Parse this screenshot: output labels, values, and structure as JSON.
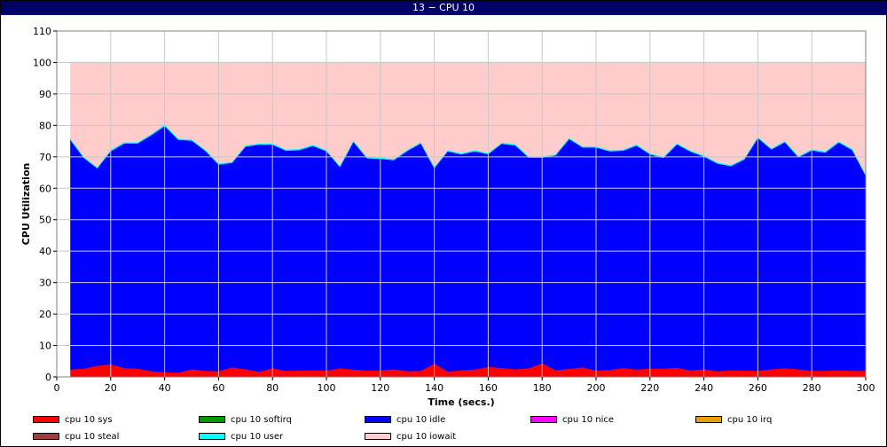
{
  "window": {
    "title": "13 − CPU 10"
  },
  "chart_data": {
    "type": "area",
    "stacked": true,
    "title": "13 − CPU 10",
    "xlabel": "Time (secs.)",
    "ylabel": "CPU Utilization",
    "xlim": [
      0,
      300
    ],
    "ylim": [
      0,
      110
    ],
    "xticks": [
      0,
      20,
      40,
      60,
      80,
      100,
      120,
      140,
      160,
      180,
      200,
      220,
      240,
      260,
      280,
      300
    ],
    "yticks": [
      0,
      10,
      20,
      30,
      40,
      50,
      60,
      70,
      80,
      90,
      100,
      110
    ],
    "grid": true,
    "legend_position": "bottom",
    "x": [
      5,
      10,
      15,
      20,
      25,
      30,
      35,
      40,
      45,
      50,
      55,
      60,
      65,
      70,
      75,
      80,
      85,
      90,
      95,
      100,
      105,
      110,
      115,
      120,
      125,
      130,
      135,
      140,
      145,
      150,
      155,
      160,
      165,
      170,
      175,
      180,
      185,
      190,
      195,
      200,
      205,
      210,
      215,
      220,
      225,
      230,
      235,
      240,
      245,
      250,
      255,
      260,
      265,
      270,
      275,
      280,
      285,
      290,
      295,
      300
    ],
    "series": [
      {
        "name": "cpu 10 sys",
        "color": "#ff0000",
        "values": [
          2.3,
          2.6,
          3.5,
          4.0,
          2.8,
          2.6,
          1.8,
          1.5,
          1.3,
          2.4,
          1.9,
          1.8,
          3.0,
          2.4,
          1.6,
          2.7,
          1.9,
          2.0,
          2.1,
          2.0,
          2.7,
          2.3,
          2.0,
          2.1,
          2.4,
          1.8,
          1.9,
          4.2,
          1.7,
          2.1,
          2.3,
          3.2,
          2.8,
          2.4,
          2.7,
          4.3,
          2.1,
          2.5,
          3.0,
          2.0,
          2.2,
          2.8,
          2.3,
          2.6,
          2.6,
          2.9,
          2.0,
          2.4,
          1.8,
          2.1,
          2.0,
          1.9,
          2.4,
          2.7,
          2.4,
          1.9,
          1.9,
          2.1,
          1.9,
          1.9
        ]
      },
      {
        "name": "cpu 10 softirq",
        "color": "#009900",
        "values": [
          0,
          0,
          0,
          0,
          0,
          0,
          0,
          0,
          0,
          0,
          0,
          0,
          0,
          0,
          0,
          0,
          0,
          0,
          0,
          0,
          0,
          0,
          0,
          0,
          0,
          0,
          0,
          0,
          0,
          0,
          0,
          0,
          0,
          0,
          0,
          0,
          0,
          0,
          0,
          0,
          0,
          0,
          0,
          0,
          0,
          0,
          0,
          0,
          0,
          0,
          0,
          0,
          0,
          0,
          0,
          0,
          0,
          0,
          0,
          0
        ]
      },
      {
        "name": "cpu 10 idle",
        "color": "#0000ff",
        "values": [
          73.0,
          67.0,
          62.8,
          67.7,
          71.4,
          71.6,
          75.0,
          78.2,
          74.1,
          72.7,
          70.0,
          65.7,
          65.0,
          70.8,
          72.2,
          71.1,
          70.0,
          70.1,
          71.3,
          69.7,
          64.0,
          72.4,
          67.5,
          67.2,
          66.5,
          70.0,
          72.3,
          62.1,
          70.0,
          68.6,
          69.4,
          67.6,
          71.3,
          71.2,
          67.0,
          65.4,
          68.3,
          73.1,
          69.9,
          70.9,
          69.5,
          69.1,
          71.2,
          68.1,
          67.0,
          71.0,
          69.6,
          67.6,
          66.0,
          64.9,
          67.1,
          74.0,
          69.9,
          71.9,
          67.4,
          70.1,
          69.4,
          72.4,
          70.2,
          62.0
        ]
      },
      {
        "name": "cpu 10 nice",
        "color": "#ff00ff",
        "values": [
          0,
          0,
          0,
          0,
          0,
          0,
          0,
          0,
          0,
          0,
          0,
          0,
          0,
          0,
          0,
          0,
          0,
          0,
          0,
          0,
          0,
          0,
          0,
          0,
          0,
          0,
          0,
          0,
          0,
          0,
          0,
          0,
          0,
          0,
          0,
          0,
          0,
          0,
          0,
          0,
          0,
          0,
          0,
          0,
          0,
          0,
          0,
          0,
          0,
          0,
          0,
          0,
          0,
          0,
          0,
          0,
          0,
          0,
          0,
          0
        ]
      },
      {
        "name": "cpu 10 irq",
        "color": "#e6a000",
        "values": [
          0,
          0,
          0,
          0,
          0,
          0,
          0,
          0,
          0,
          0,
          0,
          0,
          0,
          0,
          0,
          0,
          0,
          0,
          0,
          0,
          0,
          0,
          0,
          0,
          0,
          0,
          0,
          0,
          0,
          0,
          0,
          0,
          0,
          0,
          0,
          0,
          0,
          0,
          0,
          0,
          0,
          0,
          0,
          0,
          0,
          0,
          0,
          0,
          0,
          0,
          0,
          0,
          0,
          0,
          0,
          0,
          0,
          0,
          0,
          0
        ]
      },
      {
        "name": "cpu 10 steal",
        "color": "#a03c3c",
        "values": [
          0,
          0,
          0,
          0,
          0,
          0,
          0,
          0,
          0,
          0,
          0,
          0,
          0,
          0,
          0,
          0,
          0,
          0,
          0,
          0,
          0,
          0,
          0,
          0,
          0,
          0,
          0,
          0,
          0,
          0,
          0,
          0,
          0,
          0,
          0,
          0,
          0,
          0,
          0,
          0,
          0,
          0,
          0,
          0,
          0,
          0,
          0,
          0,
          0,
          0,
          0,
          0,
          0,
          0,
          0,
          0,
          0,
          0,
          0,
          0
        ]
      },
      {
        "name": "cpu 10 user",
        "color": "#00ffff",
        "values": [
          0.5,
          0.4,
          0.3,
          0.5,
          0.4,
          0.4,
          0.4,
          0.5,
          0.4,
          0.4,
          0.4,
          0.4,
          0.4,
          0.4,
          0.4,
          0.4,
          0.4,
          0.4,
          0.4,
          0.4,
          0.4,
          0.4,
          0.4,
          0.4,
          0.4,
          0.4,
          0.4,
          0.4,
          0.4,
          0.4,
          0.4,
          0.4,
          0.4,
          0.4,
          0.4,
          0.4,
          0.4,
          0.4,
          0.4,
          0.4,
          0.4,
          0.4,
          0.4,
          0.4,
          0.4,
          0.4,
          0.4,
          0.4,
          0.4,
          0.4,
          0.4,
          0.4,
          0.4,
          0.4,
          0.4,
          0.4,
          0.4,
          0.4,
          0.4,
          0.4
        ]
      },
      {
        "name": "cpu 10 iowait",
        "color": "#ffcccc",
        "values": [
          24.2,
          30.0,
          33.4,
          27.8,
          25.4,
          25.4,
          22.8,
          19.8,
          24.2,
          24.5,
          27.7,
          32.1,
          31.6,
          26.4,
          25.8,
          25.8,
          27.7,
          27.5,
          26.2,
          27.9,
          32.9,
          24.9,
          30.1,
          30.3,
          30.7,
          27.8,
          25.4,
          33.3,
          27.9,
          28.9,
          27.9,
          28.8,
          25.5,
          26.0,
          29.9,
          29.9,
          29.2,
          24.0,
          26.7,
          26.7,
          27.9,
          27.7,
          26.1,
          28.9,
          30.0,
          25.7,
          28.0,
          29.6,
          31.8,
          32.6,
          30.5,
          23.7,
          27.3,
          25.0,
          29.8,
          27.6,
          28.3,
          25.1,
          27.5,
          35.7
        ]
      }
    ]
  },
  "legend": {
    "items": [
      {
        "label": "cpu 10 sys",
        "color": "#ff0000"
      },
      {
        "label": "cpu 10 softirq",
        "color": "#009900"
      },
      {
        "label": "cpu 10 idle",
        "color": "#0000ff"
      },
      {
        "label": "cpu 10 nice",
        "color": "#ff00ff"
      },
      {
        "label": "cpu 10 irq",
        "color": "#e6a000"
      },
      {
        "label": "cpu 10 steal",
        "color": "#a03c3c"
      },
      {
        "label": "cpu 10 user",
        "color": "#00ffff"
      },
      {
        "label": "cpu 10 iowait",
        "color": "#ffcccc"
      }
    ]
  }
}
